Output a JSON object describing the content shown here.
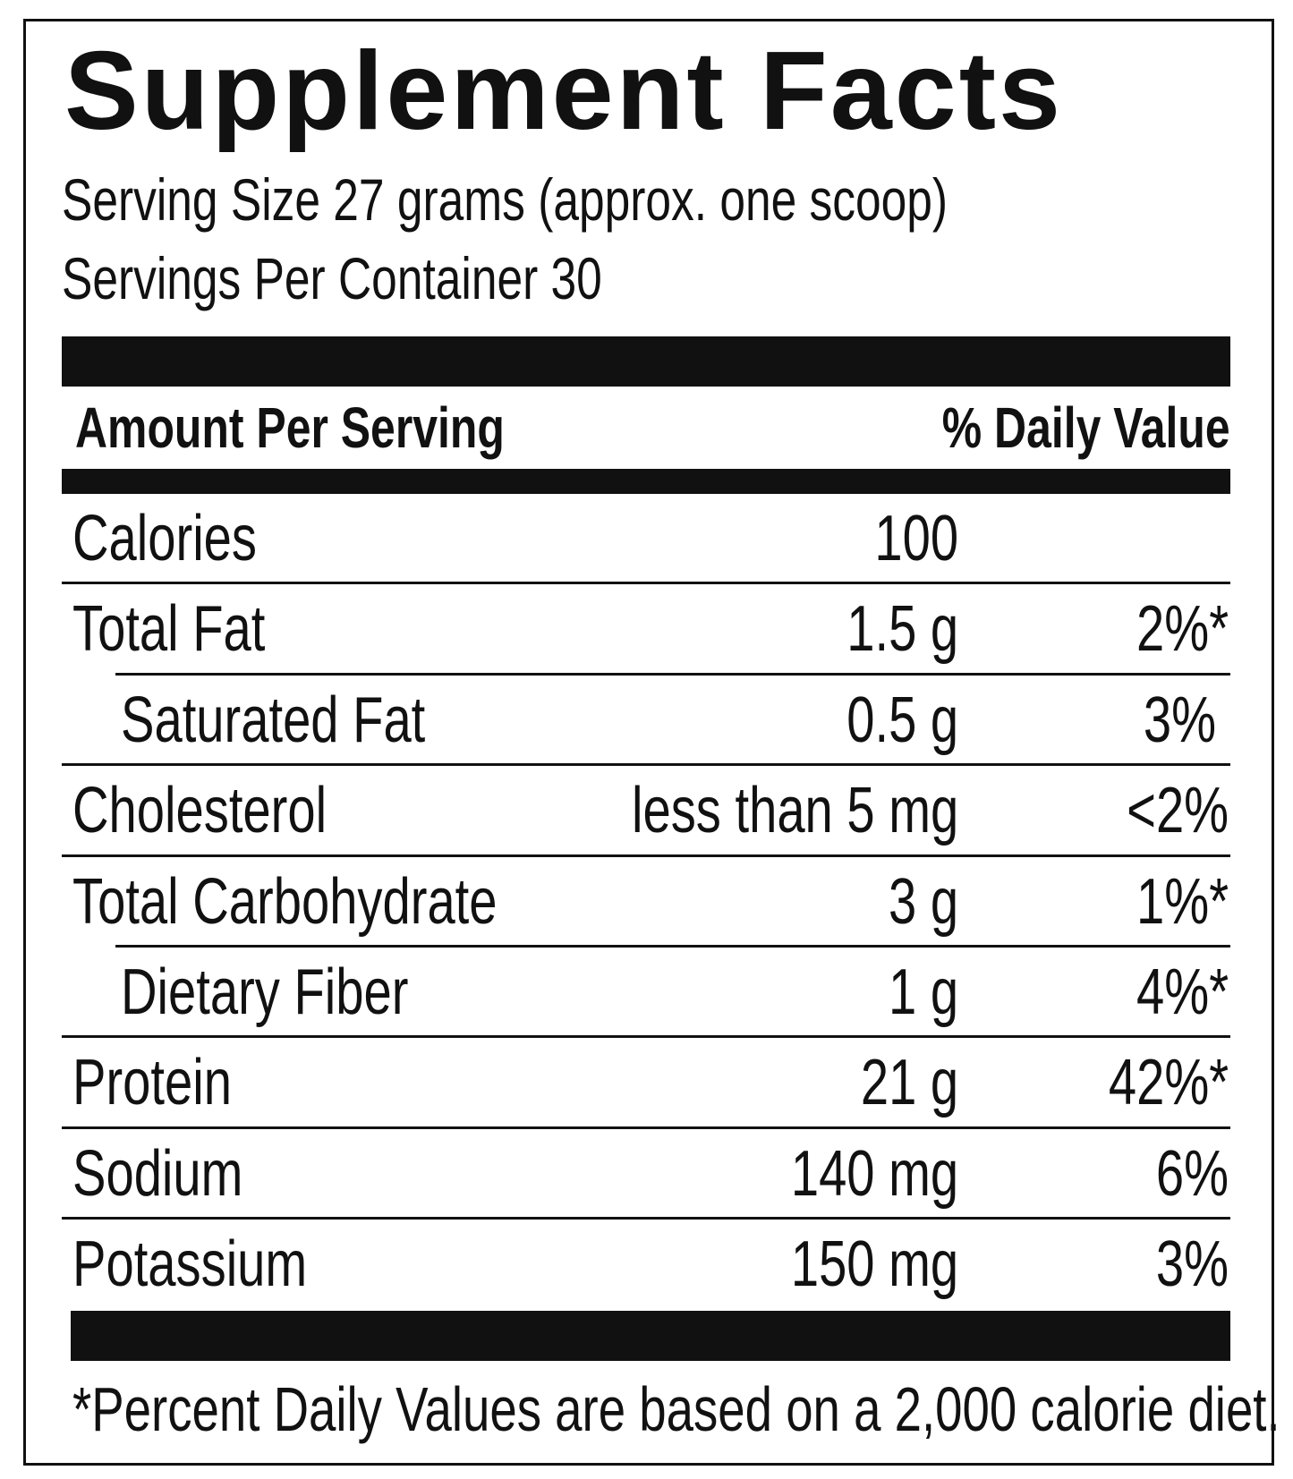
{
  "title": "Supplement Facts",
  "serving_size": "Serving Size 27 grams (approx. one scoop)",
  "servings_per_container": "Servings Per Container 30",
  "header": {
    "amount": "Amount Per Serving",
    "daily_value": "% Daily Value"
  },
  "rows": [
    {
      "name": "Calories",
      "amount": "100",
      "daily_value": ""
    },
    {
      "name": "Total Fat",
      "amount": "1.5 g",
      "daily_value": "2%*"
    },
    {
      "name": "Saturated Fat",
      "amount": "0.5 g",
      "daily_value": "3%"
    },
    {
      "name": "Cholesterol",
      "amount": "less than 5 mg",
      "daily_value": "<2%"
    },
    {
      "name": "Total Carbohydrate",
      "amount": "3 g",
      "daily_value": "1%*"
    },
    {
      "name": "Dietary Fiber",
      "amount": "1 g",
      "daily_value": "4%*"
    },
    {
      "name": "Protein",
      "amount": "21 g",
      "daily_value": "42%*"
    },
    {
      "name": "Sodium",
      "amount": "140 mg",
      "daily_value": "6%"
    },
    {
      "name": "Potassium",
      "amount": "150 mg",
      "daily_value": "3%"
    }
  ],
  "footnote": "*Percent Daily Values are based on a 2,000 calorie diet."
}
